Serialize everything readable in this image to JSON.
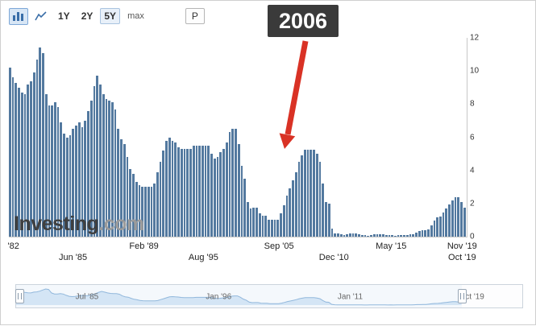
{
  "toolbar": {
    "bar_chart_icon": "bar-chart",
    "line_chart_icon": "line-chart",
    "ranges": [
      "1Y",
      "2Y",
      "5Y",
      "max"
    ],
    "selected_range": "5Y",
    "period_button": "P"
  },
  "annotation": {
    "text": "2006",
    "color": "#3a3a3a",
    "text_color": "#ffffff",
    "arrow_color": "#d93225"
  },
  "watermark": {
    "brand": "Investing",
    "suffix": ".com"
  },
  "chart_data": {
    "type": "bar",
    "title": "",
    "xlabel": "",
    "ylabel": "",
    "ylim": [
      0,
      12
    ],
    "yticks": [
      0,
      2,
      4,
      6,
      8,
      10,
      12
    ],
    "y_axis_position": "right",
    "grid": false,
    "x_start_year": 1982,
    "x_end_year": 2019,
    "frequency": "quarterly",
    "bar_color": "#53799f",
    "values": [
      10.2,
      9.6,
      9.3,
      9.0,
      8.7,
      8.6,
      9.2,
      9.4,
      9.9,
      10.7,
      11.4,
      11.1,
      8.6,
      7.9,
      7.9,
      8.1,
      7.8,
      6.9,
      6.2,
      6.0,
      6.1,
      6.5,
      6.7,
      6.9,
      6.6,
      7.0,
      7.6,
      8.2,
      9.1,
      9.7,
      9.2,
      8.6,
      8.3,
      8.2,
      8.1,
      7.7,
      6.5,
      5.9,
      5.6,
      4.8,
      4.1,
      3.8,
      3.3,
      3.1,
      3.0,
      3.0,
      3.0,
      3.0,
      3.2,
      3.9,
      4.5,
      5.2,
      5.8,
      6.0,
      5.8,
      5.7,
      5.4,
      5.3,
      5.3,
      5.3,
      5.3,
      5.5,
      5.5,
      5.5,
      5.5,
      5.5,
      5.5,
      5.0,
      4.7,
      4.8,
      5.1,
      5.3,
      5.7,
      6.3,
      6.5,
      6.5,
      5.6,
      4.3,
      3.5,
      2.1,
      1.7,
      1.75,
      1.75,
      1.4,
      1.25,
      1.25,
      1.0,
      1.0,
      1.0,
      1.0,
      1.4,
      1.9,
      2.5,
      2.9,
      3.4,
      3.9,
      4.5,
      4.9,
      5.25,
      5.25,
      5.25,
      5.25,
      5.0,
      4.5,
      3.2,
      2.1,
      2.0,
      0.5,
      0.2,
      0.18,
      0.15,
      0.12,
      0.13,
      0.18,
      0.19,
      0.19,
      0.16,
      0.1,
      0.08,
      0.07,
      0.1,
      0.15,
      0.14,
      0.16,
      0.14,
      0.12,
      0.08,
      0.09,
      0.07,
      0.09,
      0.09,
      0.1,
      0.11,
      0.13,
      0.14,
      0.24,
      0.36,
      0.37,
      0.4,
      0.45,
      0.7,
      0.95,
      1.15,
      1.2,
      1.45,
      1.7,
      1.92,
      2.2,
      2.4,
      2.4,
      2.1,
      1.75
    ],
    "xlabels": [
      {
        "text": "'82",
        "x": 1,
        "row": 0
      },
      {
        "text": "Jun '85",
        "x": 14,
        "row": 1
      },
      {
        "text": "Feb '89",
        "x": 29.5,
        "row": 0
      },
      {
        "text": "Aug '95",
        "x": 42.5,
        "row": 1
      },
      {
        "text": "Sep '05",
        "x": 59,
        "row": 0
      },
      {
        "text": "Dec '10",
        "x": 71,
        "row": 1
      },
      {
        "text": "May '15",
        "x": 83.5,
        "row": 0
      },
      {
        "text": "Nov '19",
        "x": 99,
        "row": 0
      },
      {
        "text": "Oct '19",
        "x": 99,
        "row": 1
      }
    ]
  },
  "navigator": {
    "labels": [
      {
        "text": "Jul '85",
        "x": 14
      },
      {
        "text": "Jan '96",
        "x": 40
      },
      {
        "text": "Jan '11",
        "x": 66
      },
      {
        "text": "Oct '19",
        "x": 90
      }
    ],
    "area_fill": "#d9e7f6",
    "area_line": "#8db4da",
    "range_end_percent": 88
  }
}
